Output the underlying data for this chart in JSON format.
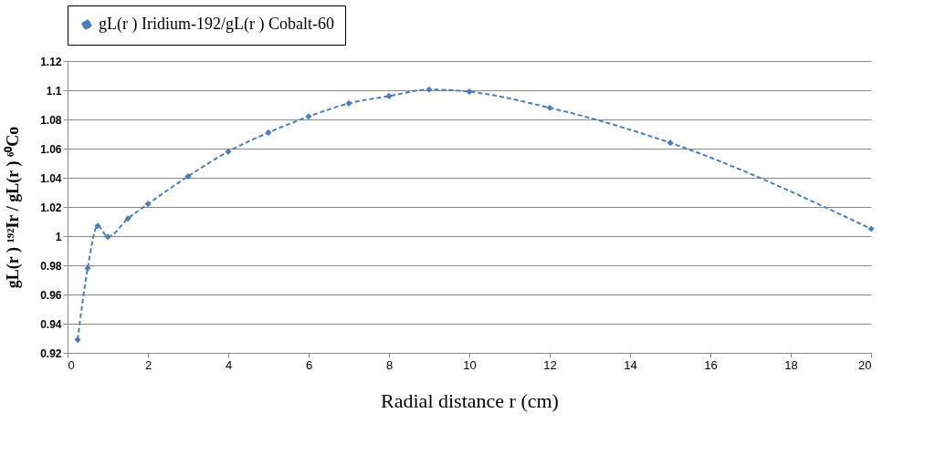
{
  "chart_data": {
    "type": "line",
    "xlabel": "Radial distance r (cm)",
    "ylabel": "gL(r ) ¹⁹²Ir / gL(r ) ⁶⁰Co",
    "x": [
      0.25,
      0.5,
      0.75,
      1,
      1.5,
      2,
      3,
      4,
      5,
      6,
      7,
      8,
      9,
      10,
      12,
      15,
      20
    ],
    "series": [
      {
        "name": "gL(r ) Iridium-192/gL(r ) Cobalt-60",
        "color": "#4a7ebb",
        "values": [
          0.929,
          0.978,
          1.007,
          0.9995,
          1.012,
          1.022,
          1.041,
          1.058,
          1.071,
          1.082,
          1.091,
          1.096,
          1.1005,
          1.099,
          1.088,
          1.064,
          1.005
        ]
      }
    ],
    "xlim": [
      0,
      20
    ],
    "xticks": [
      0,
      2,
      4,
      6,
      8,
      10,
      12,
      14,
      16,
      18,
      20
    ],
    "ylim": [
      0.92,
      1.12
    ],
    "yticks": [
      0.92,
      0.94,
      0.96,
      0.98,
      1,
      1.02,
      1.04,
      1.06,
      1.08,
      1.1,
      1.12
    ],
    "grid": "y",
    "legend": "top",
    "marker": "diamond",
    "line_style": "dashed"
  }
}
